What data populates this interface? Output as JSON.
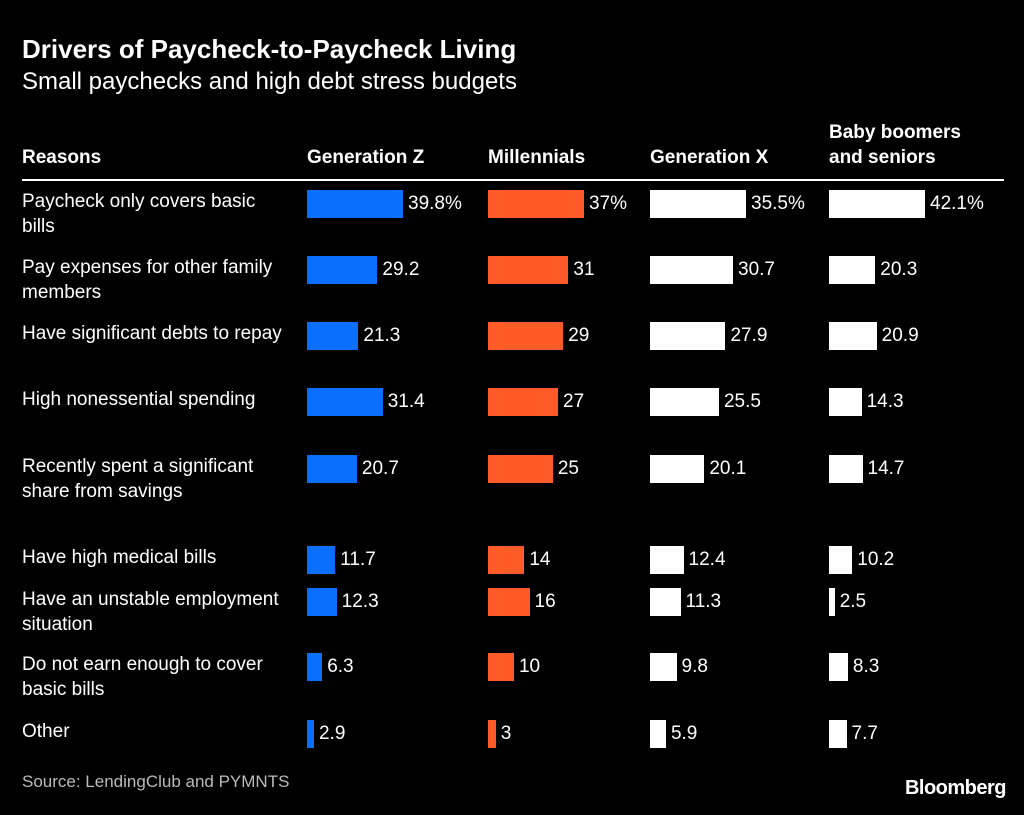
{
  "chart_data": {
    "type": "table",
    "title": "Drivers of Paycheck-to-Paycheck Living",
    "subtitle": "Small paychecks and high debt stress budgets",
    "row_header": "Reasons",
    "unit": "%",
    "categories": [
      "Paycheck only covers basic bills",
      "Pay expenses for other family members",
      "Have significant debts to repay",
      "High nonessential spending",
      "Recently spent a significant share from savings",
      "Have high medical bills",
      "Have an unstable employment situation",
      "Do not earn enough to cover basic bills",
      "Other"
    ],
    "series": [
      {
        "name": "Generation Z",
        "color": "#0a6ffd",
        "values": [
          39.8,
          29.2,
          21.3,
          31.4,
          20.7,
          11.7,
          12.3,
          6.3,
          2.9
        ],
        "labels": [
          "39.8%",
          "29.2",
          "21.3",
          "31.4",
          "20.7",
          "11.7",
          "12.3",
          "6.3",
          "2.9"
        ]
      },
      {
        "name": "Millennials",
        "color": "#ff5a28",
        "values": [
          37,
          31,
          29,
          27,
          25,
          14,
          16,
          10,
          3
        ],
        "labels": [
          "37%",
          "31",
          "29",
          "27",
          "25",
          "14",
          "16",
          "10",
          "3"
        ]
      },
      {
        "name": "Generation X",
        "color": "#ffffff",
        "values": [
          35.5,
          30.7,
          27.9,
          25.5,
          20.1,
          12.4,
          11.3,
          9.8,
          5.9
        ],
        "labels": [
          "35.5%",
          "30.7",
          "27.9",
          "25.5",
          "20.1",
          "12.4",
          "11.3",
          "9.8",
          "5.9"
        ]
      },
      {
        "name": "Baby boomers and seniors",
        "color": "#ffffff",
        "values": [
          42.1,
          20.3,
          20.9,
          14.3,
          14.7,
          10.2,
          2.5,
          8.3,
          7.7
        ],
        "labels": [
          "42.1%",
          "20.3",
          "20.9",
          "14.3",
          "14.7",
          "10.2",
          "2.5",
          "8.3",
          "7.7"
        ]
      }
    ],
    "source": "Source: LendingClub and PYMNTS",
    "brand": "Bloomberg"
  }
}
